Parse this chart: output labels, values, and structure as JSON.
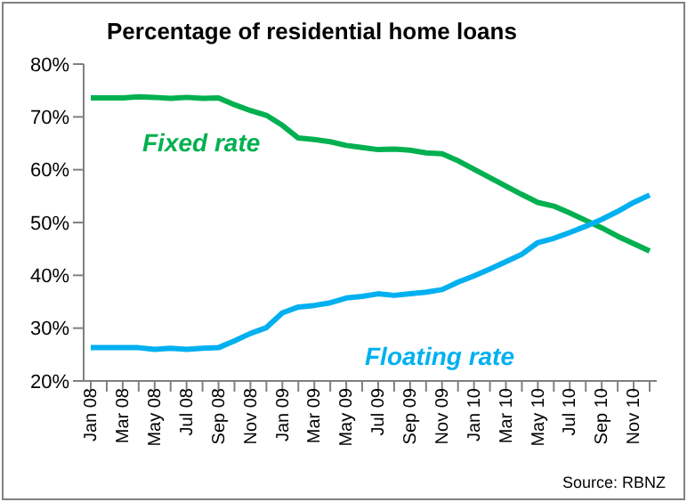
{
  "chart_data": {
    "type": "line",
    "title": "Percentage of residential home loans",
    "categories": [
      "Jan 08",
      null,
      "Mar 08",
      null,
      "May 08",
      null,
      "Jul 08",
      null,
      "Sep 08",
      null,
      "Nov 08",
      null,
      "Jan 09",
      null,
      "Mar 09",
      null,
      "May 09",
      null,
      "Jul 09",
      null,
      "Sep 09",
      null,
      "Nov 09",
      null,
      "Jan 10",
      null,
      "Mar 10",
      null,
      "May 10",
      null,
      "Jul 10",
      null,
      "Sep 10",
      null,
      "Nov 10",
      null
    ],
    "series": [
      {
        "name": "Fixed rate",
        "color": "#00b050",
        "values": [
          73.6,
          73.6,
          73.6,
          73.8,
          73.7,
          73.5,
          73.7,
          73.5,
          73.6,
          72.3,
          71.2,
          70.3,
          68.4,
          66.0,
          65.7,
          65.3,
          64.6,
          64.2,
          63.8,
          63.9,
          63.7,
          63.2,
          63.0,
          61.7,
          60.1,
          58.5,
          56.9,
          55.3,
          53.8,
          53.1,
          51.8,
          50.4,
          49.0,
          47.4,
          46.0,
          44.6
        ]
      },
      {
        "name": "Floating rate",
        "color": "#00b0f0",
        "values": [
          26.3,
          26.3,
          26.3,
          26.3,
          26.0,
          26.2,
          26.0,
          26.2,
          26.3,
          27.6,
          29.0,
          30.1,
          32.9,
          34.0,
          34.3,
          34.8,
          35.7,
          36.0,
          36.5,
          36.2,
          36.5,
          36.8,
          37.3,
          38.7,
          39.9,
          41.2,
          42.6,
          44.0,
          46.2,
          47.0,
          48.1,
          49.3,
          50.6,
          52.1,
          53.8,
          55.2
        ]
      }
    ],
    "ylim": [
      20,
      80
    ],
    "yticks": [
      {
        "value": 20,
        "label": "20%"
      },
      {
        "value": 30,
        "label": "30%"
      },
      {
        "value": 40,
        "label": "40%"
      },
      {
        "value": 50,
        "label": "50%"
      },
      {
        "value": 60,
        "label": "60%"
      },
      {
        "value": 70,
        "label": "70%"
      },
      {
        "value": 80,
        "label": "80%"
      }
    ],
    "grid": false,
    "marker": "none",
    "line_style": "solid",
    "annotations": [
      "Source: RBNZ"
    ]
  }
}
